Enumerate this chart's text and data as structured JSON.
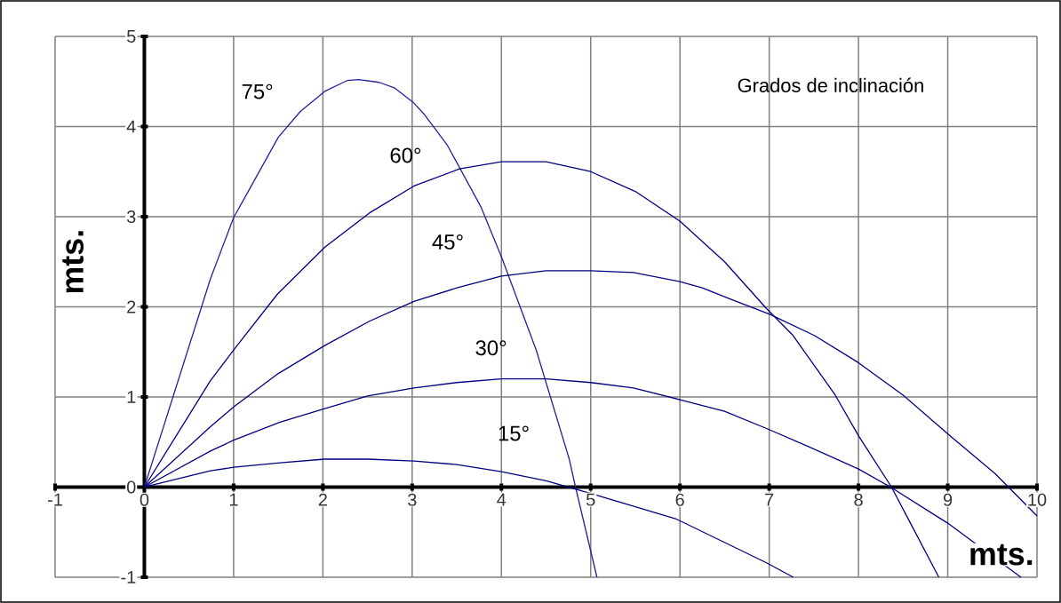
{
  "chart_data": {
    "type": "line",
    "xlabel": "mts.",
    "ylabel": "mts.",
    "xlim": [
      -1,
      10
    ],
    "ylim": [
      -1,
      5
    ],
    "xticks": [
      -1,
      0,
      1,
      2,
      3,
      4,
      5,
      6,
      7,
      8,
      9,
      10
    ],
    "yticks": [
      -1,
      0,
      1,
      2,
      3,
      4,
      5
    ],
    "grid": true,
    "marker": "none",
    "line_style": "solid",
    "annotations": [
      "Grados de inclinación",
      "75°",
      "60°",
      "45°",
      "30°",
      "15°"
    ],
    "series": [
      {
        "color": "#22229a",
        "x": [
          0,
          0.74,
          1.0,
          1.13,
          1.5,
          1.75,
          2.02,
          2.27,
          2.4,
          2.63,
          2.8,
          3.02,
          3.14,
          3.39,
          3.77,
          4.01,
          4.39,
          4.76,
          4.83,
          5.07
        ],
        "values": [
          0,
          2.31,
          2.99,
          3.22,
          3.88,
          4.17,
          4.39,
          4.51,
          4.52,
          4.49,
          4.43,
          4.26,
          4.13,
          3.8,
          3.11,
          2.53,
          1.52,
          0.31,
          0,
          -1
        ]
      },
      {
        "color": "#000080",
        "x": [
          0,
          0.74,
          1.0,
          1.49,
          2.02,
          2.52,
          3.02,
          3.53,
          4.0,
          4.5,
          5.0,
          5.5,
          6.0,
          6.5,
          6.97,
          7.26,
          7.74,
          8.0,
          8.37,
          8.9
        ],
        "values": [
          0,
          1.18,
          1.52,
          2.14,
          2.66,
          3.04,
          3.34,
          3.53,
          3.61,
          3.61,
          3.5,
          3.28,
          2.95,
          2.5,
          1.98,
          1.69,
          1.02,
          0.57,
          0,
          -1
        ]
      },
      {
        "color": "#000080",
        "x": [
          0,
          0.74,
          1.0,
          1.5,
          2.02,
          2.52,
          3.02,
          3.5,
          4.0,
          4.5,
          5.0,
          5.48,
          6.0,
          6.25,
          6.58,
          7.0,
          7.51,
          8.0,
          8.5,
          9.0,
          9.53,
          10.0
        ],
        "values": [
          0,
          0.67,
          0.89,
          1.26,
          1.57,
          1.84,
          2.06,
          2.21,
          2.34,
          2.4,
          2.4,
          2.38,
          2.28,
          2.21,
          2.08,
          1.92,
          1.68,
          1.38,
          1.02,
          0.59,
          0.15,
          -0.32
        ]
      },
      {
        "color": "#000080",
        "x": [
          0,
          0.74,
          1.0,
          1.52,
          2.02,
          2.5,
          3.02,
          3.5,
          4.0,
          4.5,
          5.0,
          5.48,
          6.0,
          6.5,
          6.97,
          7.44,
          8.0,
          8.36,
          9.0,
          9.82
        ],
        "values": [
          0,
          0.4,
          0.52,
          0.72,
          0.87,
          1.01,
          1.1,
          1.16,
          1.2,
          1.2,
          1.16,
          1.1,
          0.97,
          0.84,
          0.65,
          0.45,
          0.2,
          0,
          -0.4,
          -1
        ]
      },
      {
        "color": "#000080",
        "x": [
          0,
          0.74,
          1.0,
          1.52,
          2.02,
          2.5,
          3.02,
          3.5,
          4.0,
          4.5,
          5.0,
          5.95,
          6.97,
          7.27
        ],
        "values": [
          0,
          0.18,
          0.22,
          0.27,
          0.31,
          0.31,
          0.29,
          0.25,
          0.17,
          0.07,
          -0.07,
          -0.35,
          -0.84,
          -1
        ]
      }
    ]
  }
}
